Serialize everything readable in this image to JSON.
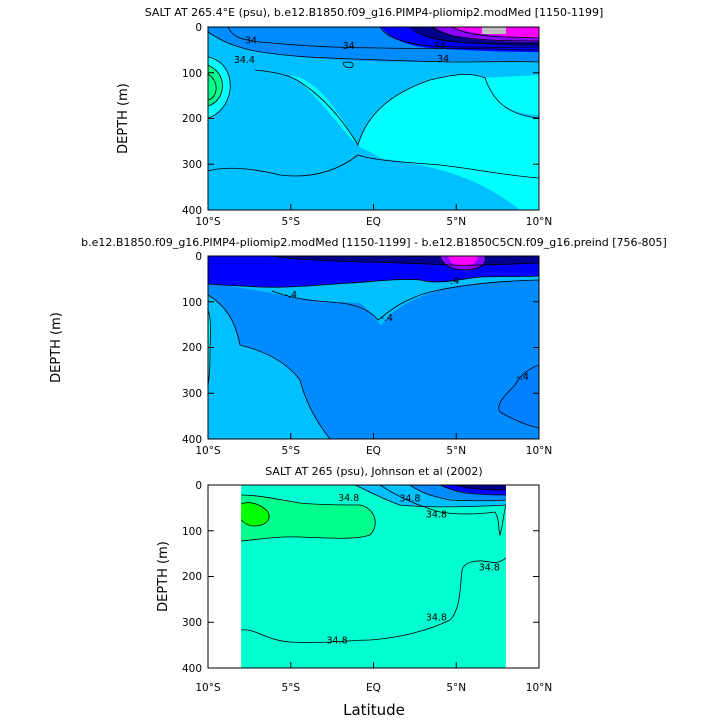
{
  "chart_data": [
    {
      "type": "contour",
      "title": "SALT AT 265.4°E (psu), b.e12.B1850.f09_g16.PIMP4-pliomip2.modMed [1150-1199]",
      "ylabel": "DEPTH (m)",
      "xlim": [
        -10,
        10
      ],
      "ylim": [
        400,
        0
      ],
      "xticks": [
        "10°S",
        "5°S",
        "EQ",
        "5°N",
        "10°N"
      ],
      "yticks": [
        "0",
        "100",
        "200",
        "300",
        "400"
      ],
      "contour_labels": [
        {
          "text": "34",
          "x": -7.4,
          "y": 30
        },
        {
          "text": "34.4",
          "x": -7.8,
          "y": 72
        },
        {
          "text": "34",
          "x": -1.5,
          "y": 42
        },
        {
          "text": "34",
          "x": 4.0,
          "y": 42
        },
        {
          "text": "34",
          "x": 4.2,
          "y": 70
        }
      ],
      "colors": {
        "deep_fresh": "#00008c",
        "fresh": "#0000ff",
        "mid": "#008cff",
        "base": "#00c0ff",
        "salty": "#00ffff",
        "max": "#ff00ff"
      }
    },
    {
      "type": "contour",
      "title": "b.e12.B1850.f09_g16.PIMP4-pliomip2.modMed [1150-1199] - b.e12.B1850C5CN.f09_g16.preind [756-805]",
      "ylabel": "DEPTH (m)",
      "xlim": [
        -10,
        10
      ],
      "ylim": [
        400,
        0
      ],
      "xticks": [
        "10°S",
        "5°S",
        "EQ",
        "5°N",
        "10°N"
      ],
      "yticks": [
        "0",
        "100",
        "200",
        "300",
        "400"
      ],
      "contour_labels": [
        {
          "text": "-.4",
          "x": -5.0,
          "y": 85
        },
        {
          "text": "-.4",
          "x": 4.8,
          "y": 55
        },
        {
          "text": "-.4",
          "x": 0.8,
          "y": 135
        },
        {
          "text": "-.4",
          "x": 9.0,
          "y": 265
        }
      ],
      "colors": {
        "strong": "#0000ff",
        "mid": "#008cff",
        "base": "#00c0ff",
        "salty": "#ff00ff"
      }
    },
    {
      "type": "contour",
      "title": "SALT AT 265 (psu), Johnson et al (2002)",
      "ylabel": "DEPTH (m)",
      "xlabel": "Latitude",
      "xlim": [
        -10,
        10
      ],
      "ylim": [
        400,
        0
      ],
      "xticks": [
        "10°S",
        "5°S",
        "EQ",
        "5°N",
        "10°N"
      ],
      "yticks": [
        "0",
        "100",
        "200",
        "300",
        "400"
      ],
      "data_x_range": [
        -8,
        8
      ],
      "contour_labels": [
        {
          "text": "34.8",
          "x": -1.5,
          "y": 28
        },
        {
          "text": "34.8",
          "x": 2.2,
          "y": 30
        },
        {
          "text": "34.8",
          "x": 3.8,
          "y": 65
        },
        {
          "text": "34.8",
          "x": -2.2,
          "y": 340
        },
        {
          "text": "34.8",
          "x": 3.8,
          "y": 290
        },
        {
          "text": "34.8",
          "x": 7.0,
          "y": 180
        }
      ],
      "colors": {
        "max": "#00ff00",
        "high": "#00ff8c",
        "base": "#00ffd0",
        "fresh": "#0000ff"
      }
    }
  ]
}
